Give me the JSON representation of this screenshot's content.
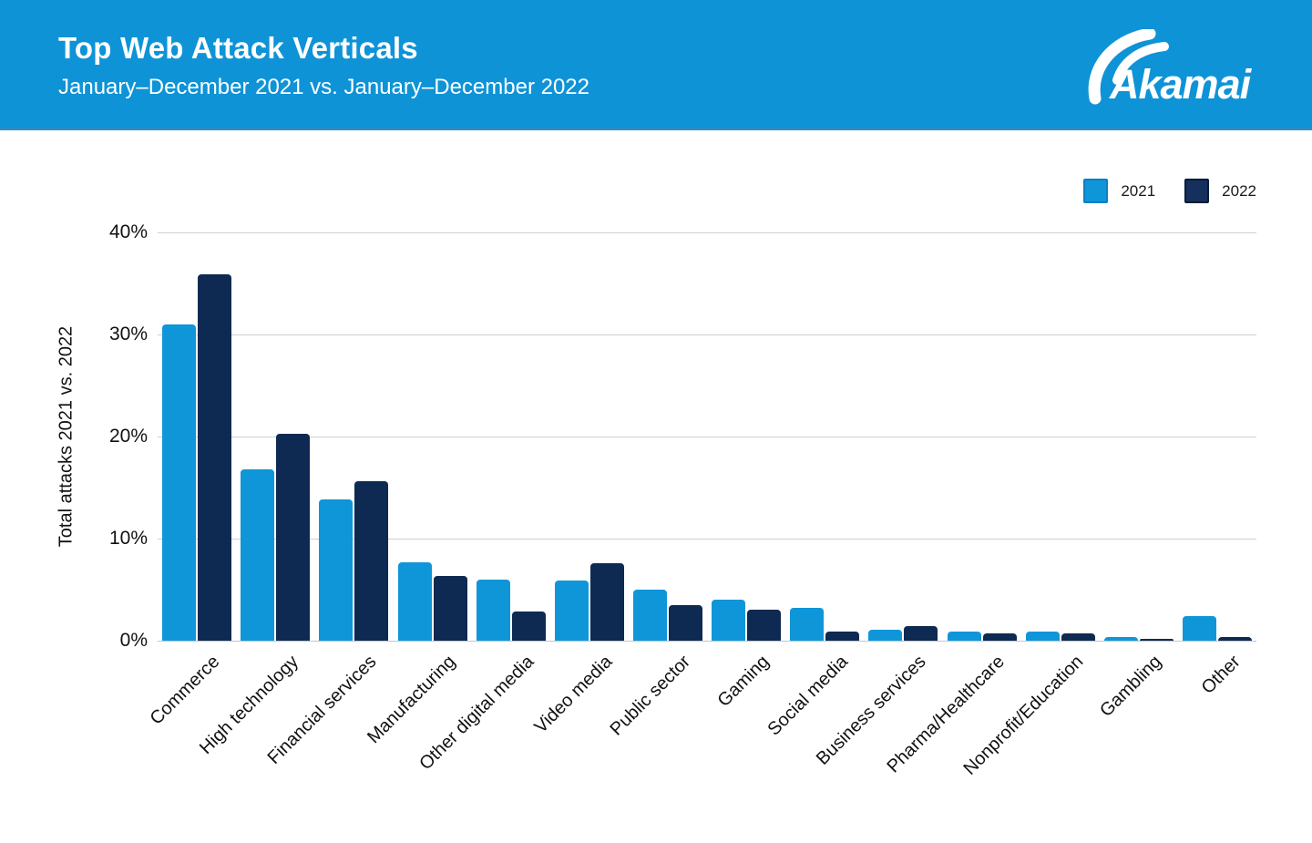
{
  "header": {
    "title": "Top Web Attack Verticals",
    "subtitle": "January–December 2021 vs. January–December 2022",
    "brand": "Akamai"
  },
  "colors": {
    "header_blue": "#0e93d7",
    "series_2021": "#0f96d9",
    "series_2022": "#0e2a52",
    "gridline": "#cdd0d2"
  },
  "chart_data": {
    "type": "bar",
    "title": "Top Web Attack Verticals",
    "subtitle": "January–December 2021 vs. January–December 2022",
    "xlabel": "",
    "ylabel": "Total attacks 2021 vs. 2022",
    "ylim": [
      0,
      40
    ],
    "yticks": [
      {
        "label": "0%",
        "value": 0
      },
      {
        "label": "10%",
        "value": 10
      },
      {
        "label": "20%",
        "value": 20
      },
      {
        "label": "30%",
        "value": 30
      },
      {
        "label": "40%",
        "value": 40
      }
    ],
    "grid": true,
    "legend_position": "top-right",
    "categories": [
      "Commerce",
      "High technology",
      "Financial services",
      "Manufacturing",
      "Other digital media",
      "Video media",
      "Public sector",
      "Gaming",
      "Social media",
      "Business services",
      "Pharma/Healthcare",
      "Nonprofit/Education",
      "Gambling",
      "Other"
    ],
    "series": [
      {
        "name": "2021",
        "color": "#0f96d9",
        "values": [
          31.0,
          16.8,
          13.8,
          7.7,
          6.0,
          5.9,
          5.0,
          4.0,
          3.2,
          1.1,
          0.9,
          0.9,
          0.35,
          2.4
        ]
      },
      {
        "name": "2022",
        "color": "#0e2a52",
        "values": [
          35.9,
          20.3,
          15.6,
          6.3,
          2.9,
          7.6,
          3.5,
          3.0,
          0.9,
          1.4,
          0.7,
          0.7,
          0.2,
          0.35
        ]
      }
    ]
  }
}
